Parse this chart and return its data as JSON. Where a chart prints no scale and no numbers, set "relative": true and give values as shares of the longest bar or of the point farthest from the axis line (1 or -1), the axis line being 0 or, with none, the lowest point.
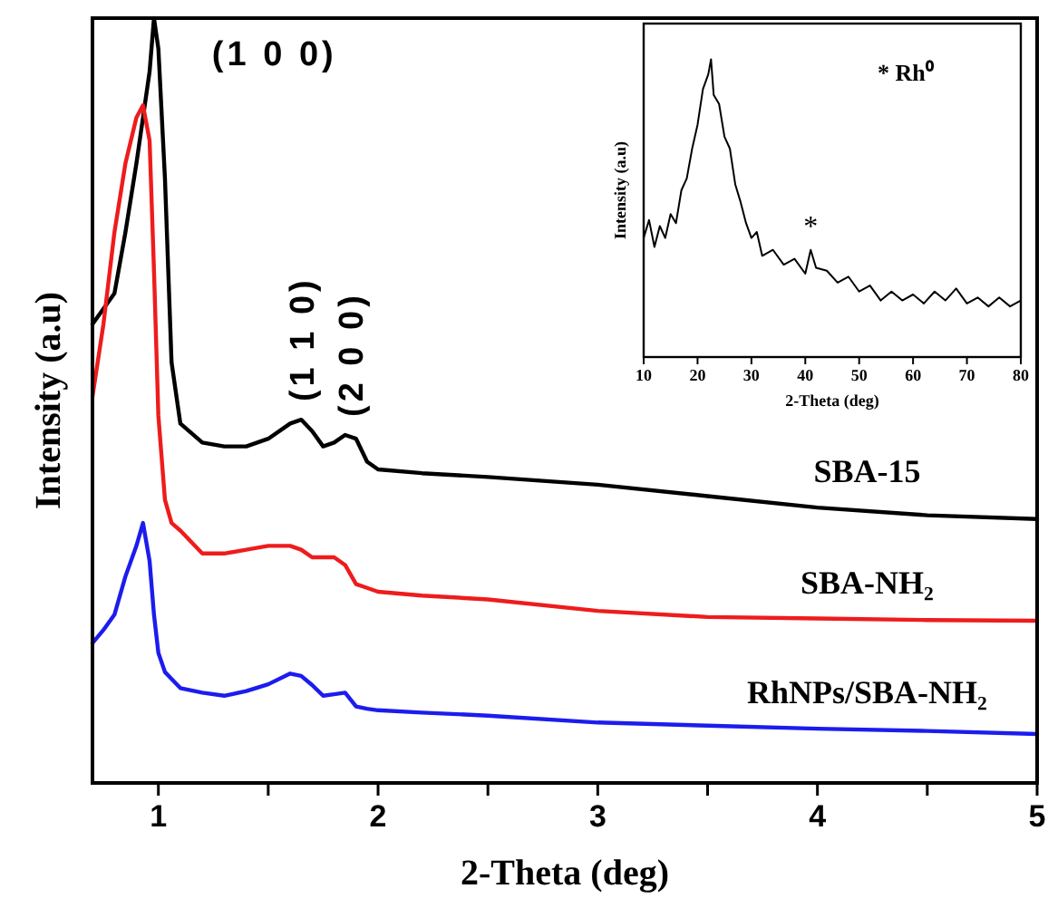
{
  "chart_data": [
    {
      "type": "line",
      "relative": true,
      "xlabel": "2-Theta (deg)",
      "ylabel": "Intensity (a.u)",
      "xlim": [
        0.7,
        5
      ],
      "xticks": [
        1,
        {
          "value": 1.5,
          "label": null
        },
        2,
        {
          "value": 2.5,
          "label": null
        },
        3,
        {
          "value": 3.5,
          "label": null
        },
        4,
        {
          "value": 4.5,
          "label": null
        },
        5
      ],
      "x": [
        0.7,
        0.75,
        0.8,
        0.85,
        0.9,
        0.93,
        0.96,
        0.98,
        1.0,
        1.03,
        1.06,
        1.1,
        1.2,
        1.3,
        1.4,
        1.5,
        1.6,
        1.65,
        1.7,
        1.75,
        1.8,
        1.85,
        1.9,
        1.95,
        2.0,
        2.2,
        2.5,
        3.0,
        3.5,
        4.0,
        4.5,
        5.0
      ],
      "series": [
        {
          "name": "SBA-15",
          "color": "#000000",
          "values": [
            0.6,
            0.62,
            0.64,
            0.72,
            0.81,
            0.87,
            0.93,
            1.0,
            0.96,
            0.79,
            0.55,
            0.47,
            0.445,
            0.44,
            0.44,
            0.45,
            0.47,
            0.475,
            0.46,
            0.44,
            0.445,
            0.455,
            0.45,
            0.42,
            0.41,
            0.405,
            0.4,
            0.39,
            0.375,
            0.36,
            0.35,
            0.345
          ]
        },
        {
          "name": "SBA-NH₂",
          "color": "#ee1c1c",
          "values": [
            0.505,
            0.6,
            0.72,
            0.81,
            0.87,
            0.886,
            0.84,
            0.67,
            0.48,
            0.37,
            0.34,
            0.33,
            0.3,
            0.3,
            0.305,
            0.31,
            0.31,
            0.305,
            0.295,
            0.295,
            0.295,
            0.285,
            0.26,
            0.255,
            0.25,
            0.245,
            0.24,
            0.225,
            0.217,
            0.215,
            0.213,
            0.212
          ]
        },
        {
          "name": "RhNPs/SBA-NH₂",
          "color": "#1c1cee",
          "values": [
            0.183,
            0.2,
            0.22,
            0.27,
            0.31,
            0.34,
            0.29,
            0.22,
            0.17,
            0.145,
            0.136,
            0.124,
            0.118,
            0.114,
            0.12,
            0.129,
            0.143,
            0.14,
            0.128,
            0.114,
            0.116,
            0.118,
            0.1,
            0.097,
            0.095,
            0.092,
            0.088,
            0.079,
            0.075,
            0.071,
            0.068,
            0.064
          ]
        }
      ],
      "annotations": [
        {
          "text": "(1 0 0)",
          "x": 0.98,
          "y": 1.0
        },
        {
          "text": "(1 1 0)",
          "x": 1.65,
          "y": 0.475
        },
        {
          "text": "(2 0 0)",
          "x": 1.87,
          "y": 0.455
        }
      ]
    },
    {
      "type": "line",
      "relative": true,
      "xlabel": "2-Theta (deg)",
      "ylabel": "Intensity (a.u)",
      "xlim": [
        10,
        80
      ],
      "xticks": [
        10,
        20,
        30,
        40,
        50,
        60,
        70,
        80
      ],
      "x": [
        10,
        11,
        12,
        13,
        14,
        15,
        16,
        17,
        18,
        19,
        20,
        21,
        22,
        22.5,
        23,
        24,
        25,
        26,
        27,
        28,
        29,
        30,
        31,
        32,
        34,
        36,
        38,
        40,
        41,
        42,
        44,
        46,
        48,
        50,
        52,
        54,
        56,
        58,
        60,
        62,
        64,
        66,
        68,
        70,
        72,
        74,
        76,
        78,
        80
      ],
      "series": [
        {
          "color": "#000000",
          "values": [
            0.4,
            0.46,
            0.37,
            0.44,
            0.4,
            0.48,
            0.45,
            0.56,
            0.6,
            0.7,
            0.78,
            0.9,
            0.95,
            1.0,
            0.88,
            0.85,
            0.74,
            0.7,
            0.58,
            0.52,
            0.45,
            0.4,
            0.42,
            0.34,
            0.36,
            0.31,
            0.33,
            0.28,
            0.36,
            0.3,
            0.29,
            0.25,
            0.27,
            0.22,
            0.24,
            0.19,
            0.22,
            0.19,
            0.21,
            0.18,
            0.22,
            0.19,
            0.23,
            0.18,
            0.2,
            0.17,
            0.2,
            0.17,
            0.19
          ]
        }
      ],
      "annotations": [
        {
          "text": "*",
          "x": 41,
          "y": 0.36
        },
        "* Rh⁰"
      ]
    }
  ]
}
